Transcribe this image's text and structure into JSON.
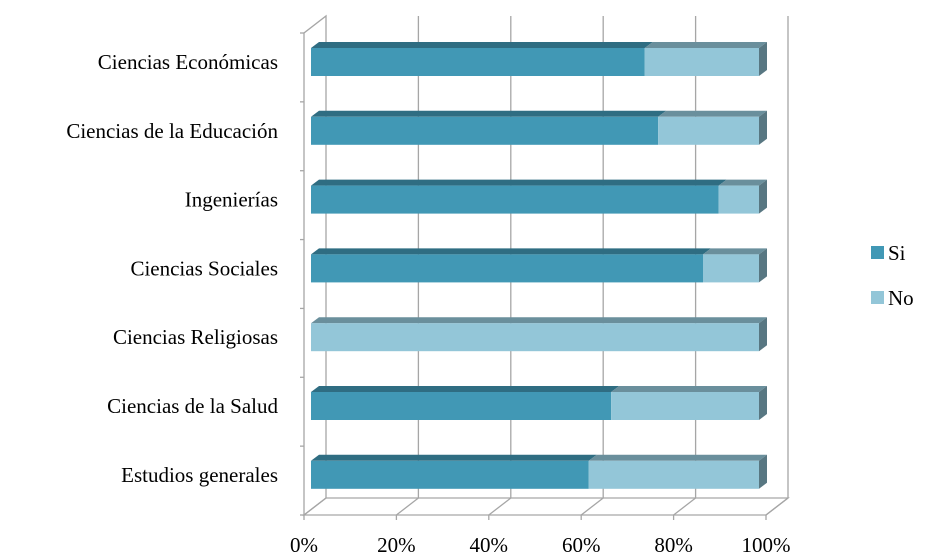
{
  "chart_data": {
    "type": "bar",
    "orientation": "horizontal",
    "stacked": "percent",
    "three_d": true,
    "title": "",
    "xlabel": "",
    "ylabel": "",
    "categories": [
      "Ciencias Económicas",
      "Ciencias de la Educación",
      "Ingenierías",
      "Ciencias Sociales",
      "Ciencias Religiosas",
      "Ciencias de la Salud",
      "Estudios generales"
    ],
    "series": [
      {
        "name": "Si",
        "color": "#4198b5",
        "values": [
          74.5,
          77.5,
          91,
          87.5,
          0,
          67,
          62
        ]
      },
      {
        "name": "No",
        "color": "#93c6d8",
        "values": [
          25.5,
          22.5,
          9,
          12.5,
          100,
          33,
          38
        ]
      }
    ],
    "x_ticks": [
      "0%",
      "20%",
      "40%",
      "60%",
      "80%",
      "100%"
    ],
    "xlim": [
      0,
      100
    ],
    "grid": "vertical",
    "legend": {
      "position": "right",
      "entries": [
        "Si",
        "No"
      ]
    }
  }
}
